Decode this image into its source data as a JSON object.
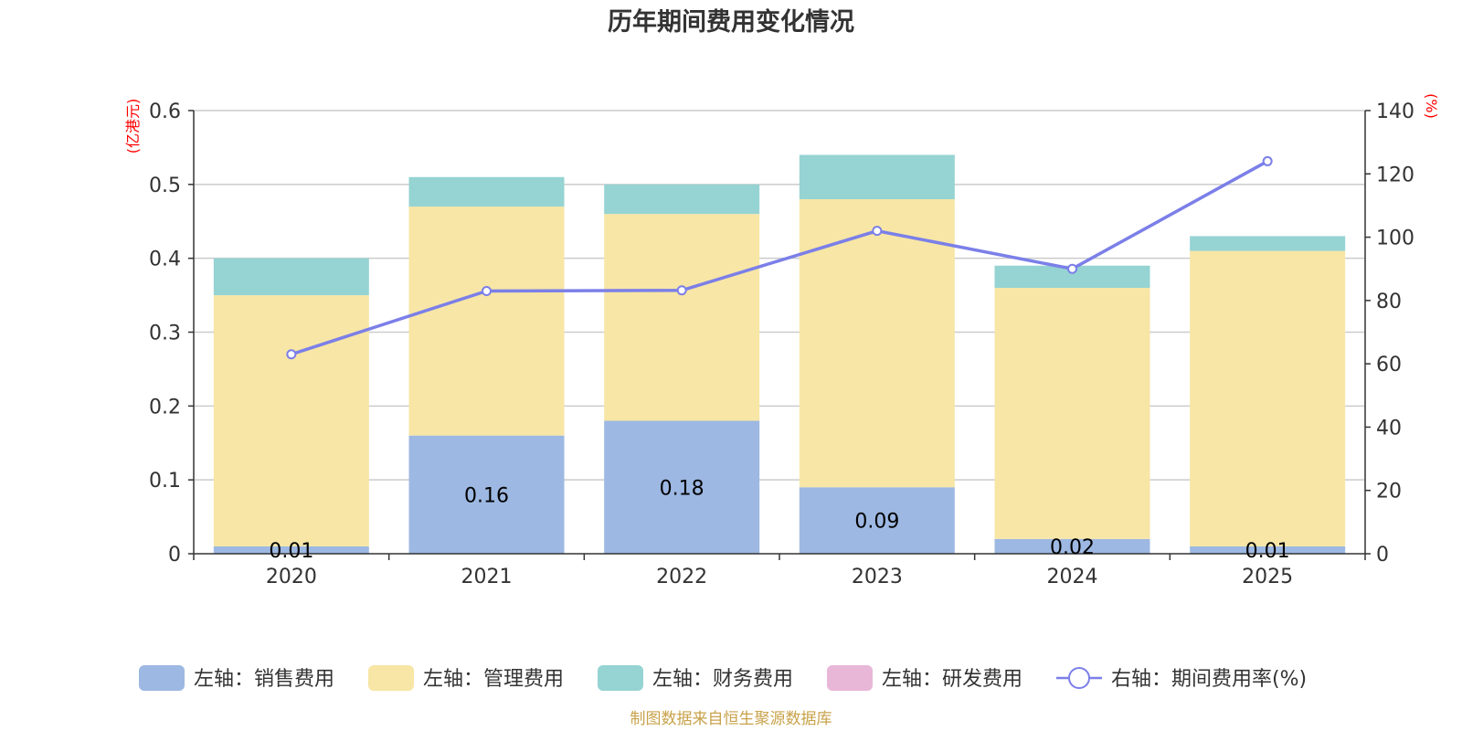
{
  "chart_data": {
    "type": "bar",
    "stacked": true,
    "title": "历年期间费用变化情况",
    "categories": [
      "2020",
      "2021",
      "2022",
      "2023",
      "2024",
      "2025"
    ],
    "left_axis": {
      "unit": "(亿港元)",
      "ylim": [
        0,
        0.6
      ],
      "ticks": [
        "0",
        "0.1",
        "0.2",
        "0.3",
        "0.4",
        "0.5",
        "0.6"
      ]
    },
    "right_axis": {
      "unit": "(%)",
      "ylim": [
        0,
        140
      ],
      "ticks": [
        "0",
        "20",
        "40",
        "60",
        "80",
        "100",
        "120",
        "140"
      ]
    },
    "series": [
      {
        "name": "左轴：销售费用",
        "axis": "left",
        "color": "#9db8e2",
        "values": [
          0.01,
          0.16,
          0.18,
          0.09,
          0.02,
          0.01
        ],
        "labels": [
          "0.01",
          "0.16",
          "0.18",
          "0.09",
          "0.02",
          "0.01"
        ]
      },
      {
        "name": "左轴：管理费用",
        "axis": "left",
        "color": "#f7e6a6",
        "values": [
          0.34,
          0.31,
          0.28,
          0.39,
          0.34,
          0.4
        ]
      },
      {
        "name": "左轴：财务费用",
        "axis": "left",
        "color": "#96d3d3",
        "values": [
          0.05,
          0.04,
          0.04,
          0.06,
          0.03,
          0.02
        ]
      },
      {
        "name": "左轴：研发费用",
        "axis": "left",
        "color": "#e8b7d8",
        "values": [
          0,
          0,
          0,
          0,
          0,
          0
        ]
      },
      {
        "name": "右轴：期间费用率(%)",
        "axis": "right",
        "type": "line",
        "color": "#7b7fe8",
        "values": [
          63,
          83,
          83.2,
          102,
          90,
          124
        ]
      }
    ]
  },
  "source": "制图数据来自恒生聚源数据库"
}
